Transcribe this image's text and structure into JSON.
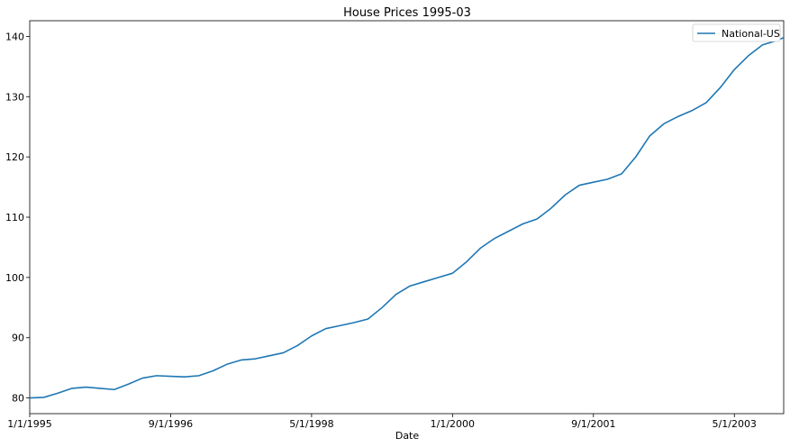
{
  "chart_data": {
    "type": "line",
    "title": "House Prices 1995-03",
    "xlabel": "Date",
    "ylabel": "",
    "x_tick_labels": [
      "1/1/1995",
      "9/1/1996",
      "5/1/1998",
      "1/1/2000",
      "9/1/2001",
      "5/1/2003"
    ],
    "x_tick_values": [
      "1995-01",
      "1996-09",
      "1998-05",
      "2000-01",
      "2001-09",
      "2003-05"
    ],
    "xlim": [
      "1995-01",
      "2003-12"
    ],
    "y_tick_values": [
      80,
      90,
      100,
      110,
      120,
      130,
      140
    ],
    "ylim": [
      77.4,
      142.6
    ],
    "grid": false,
    "legend_position": "top-right",
    "colors": {
      "series": "#1f77b4",
      "axis": "#000000"
    },
    "series": [
      {
        "name": "National-US",
        "x": [
          "1995-01",
          "1995-03",
          "1995-05",
          "1995-07",
          "1995-09",
          "1995-11",
          "1996-01",
          "1996-03",
          "1996-05",
          "1996-07",
          "1996-09",
          "1996-11",
          "1997-01",
          "1997-03",
          "1997-05",
          "1997-07",
          "1997-09",
          "1997-11",
          "1998-01",
          "1998-03",
          "1998-05",
          "1998-07",
          "1998-09",
          "1998-11",
          "1999-01",
          "1999-03",
          "1999-05",
          "1999-07",
          "1999-09",
          "1999-11",
          "2000-01",
          "2000-03",
          "2000-05",
          "2000-07",
          "2000-09",
          "2000-11",
          "2001-01",
          "2001-03",
          "2001-05",
          "2001-07",
          "2001-09",
          "2001-11",
          "2002-01",
          "2002-03",
          "2002-05",
          "2002-07",
          "2002-09",
          "2002-11",
          "2003-01",
          "2003-03",
          "2003-05",
          "2003-07",
          "2003-09",
          "2003-11",
          "2003-12"
        ],
        "values": [
          80.0,
          80.1,
          80.8,
          81.6,
          81.8,
          81.6,
          81.4,
          82.3,
          83.3,
          83.7,
          83.6,
          83.5,
          83.7,
          84.5,
          85.6,
          86.3,
          86.5,
          87.0,
          87.5,
          88.7,
          90.3,
          91.5,
          92.0,
          92.5,
          93.1,
          95.0,
          97.2,
          98.6,
          99.3,
          100.0,
          100.7,
          102.6,
          104.9,
          106.5,
          107.7,
          108.9,
          109.7,
          111.5,
          113.7,
          115.3,
          115.8,
          116.3,
          117.2,
          120.0,
          123.5,
          125.5,
          126.7,
          127.7,
          129.0,
          131.5,
          134.5,
          136.8,
          138.6,
          139.3,
          139.8
        ]
      }
    ]
  }
}
